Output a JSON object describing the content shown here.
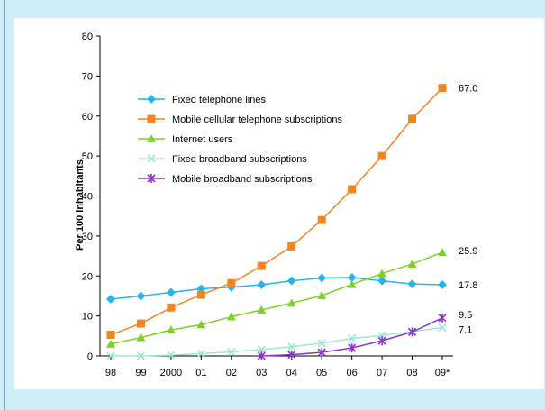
{
  "chart_data": {
    "type": "line",
    "ylabel": "Per 100 inhabitants",
    "xlabel": "",
    "ylim": [
      0,
      80
    ],
    "yticks": [
      0,
      10,
      20,
      30,
      40,
      50,
      60,
      70,
      80
    ],
    "categories": [
      "98",
      "99",
      "2000",
      "01",
      "02",
      "03",
      "04",
      "05",
      "06",
      "07",
      "08",
      "09*"
    ],
    "legend_position": "upper-left inside plot",
    "series": [
      {
        "name": "Fixed telephone lines",
        "color": "#29b4e6",
        "marker": "diamond",
        "values": [
          14.2,
          15.0,
          15.9,
          16.8,
          17.2,
          17.8,
          18.8,
          19.5,
          19.6,
          18.8,
          18.0,
          17.8
        ],
        "end_label": "17.8"
      },
      {
        "name": "Mobile cellular telephone subscriptions",
        "color": "#f5841f",
        "marker": "square",
        "values": [
          5.3,
          8.1,
          12.1,
          15.3,
          18.2,
          22.5,
          27.4,
          34.0,
          41.7,
          50.0,
          59.3,
          67.0
        ],
        "end_label": "67.0"
      },
      {
        "name": "Internet users",
        "color": "#7fd12a",
        "marker": "triangle",
        "values": [
          3.0,
          4.6,
          6.5,
          7.8,
          9.8,
          11.5,
          13.2,
          15.1,
          17.9,
          20.6,
          23.0,
          25.9
        ],
        "end_label": "25.9"
      },
      {
        "name": "Fixed broadband subscriptions",
        "color": "#9fe6d8",
        "marker": "x",
        "values": [
          0.0,
          0.0,
          0.2,
          0.6,
          1.0,
          1.6,
          2.3,
          3.2,
          4.4,
          5.1,
          6.1,
          7.1
        ],
        "end_label": "7.1"
      },
      {
        "name": "Mobile broadband subscriptions",
        "color": "#8e35c9",
        "marker": "star",
        "values": [
          null,
          null,
          null,
          null,
          null,
          0.0,
          0.3,
          0.9,
          2.0,
          3.8,
          6.0,
          9.5
        ],
        "end_label": "9.5"
      }
    ]
  }
}
